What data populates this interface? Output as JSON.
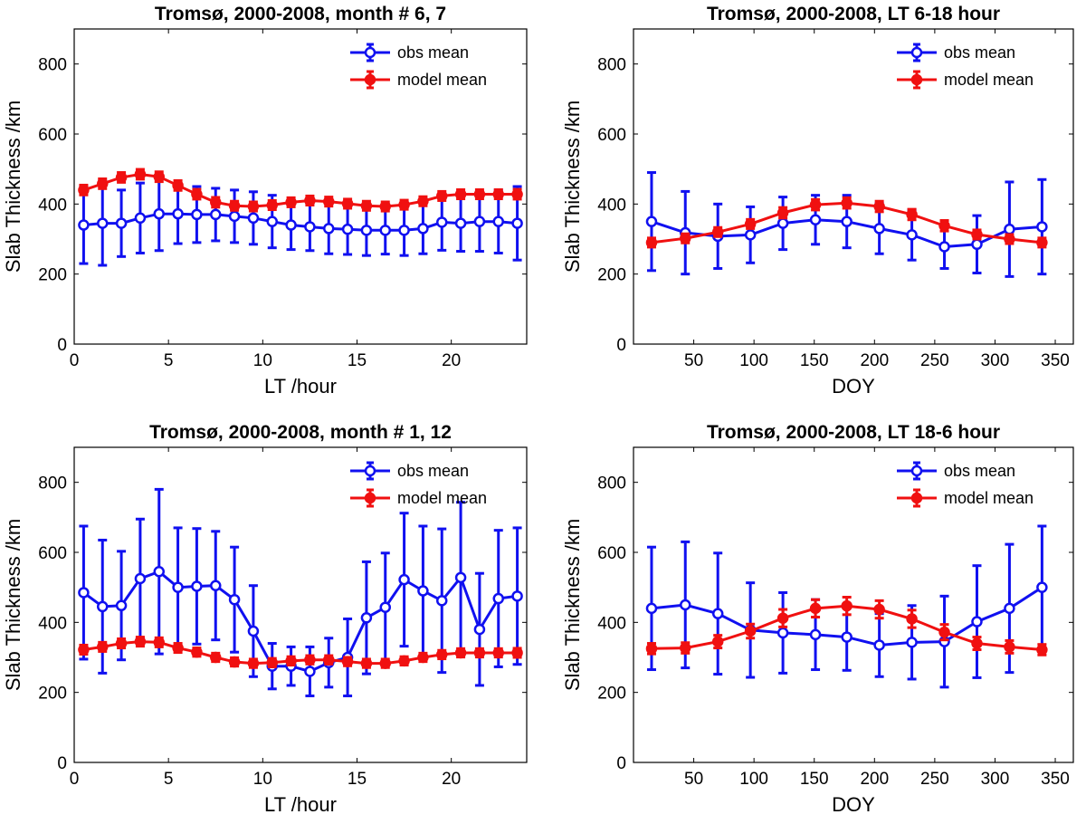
{
  "colors": {
    "obs": "#1010f0",
    "model": "#f01010"
  },
  "chart_data": [
    {
      "type": "line",
      "title": "Tromsø, 2000-2008, month # 6, 7",
      "xlabel": "LT /hour",
      "ylabel": "Slab Thickness /km",
      "xlim": [
        0,
        24
      ],
      "ylim": [
        0,
        900
      ],
      "xticks": [
        0,
        5,
        10,
        15,
        20
      ],
      "yticks": [
        0,
        200,
        400,
        600,
        800
      ],
      "legend": {
        "position": "top-right",
        "entries": [
          "obs mean",
          "model mean"
        ]
      },
      "x": [
        0.5,
        1.5,
        2.5,
        3.5,
        4.5,
        5.5,
        6.5,
        7.5,
        8.5,
        9.5,
        10.5,
        11.5,
        12.5,
        13.5,
        14.5,
        15.5,
        16.5,
        17.5,
        18.5,
        19.5,
        20.5,
        21.5,
        22.5,
        23.5
      ],
      "series": [
        {
          "name": "obs mean",
          "values": [
            340,
            345,
            345,
            360,
            372,
            372,
            370,
            370,
            365,
            360,
            350,
            340,
            335,
            330,
            328,
            325,
            325,
            325,
            330,
            348,
            345,
            350,
            350,
            345
          ],
          "errors": [
            110,
            120,
            95,
            100,
            105,
            85,
            80,
            75,
            75,
            75,
            75,
            70,
            68,
            72,
            72,
            72,
            68,
            72,
            72,
            80,
            80,
            85,
            90,
            105
          ]
        },
        {
          "name": "model mean",
          "values": [
            440,
            458,
            476,
            485,
            478,
            453,
            428,
            405,
            395,
            393,
            397,
            405,
            410,
            407,
            401,
            395,
            393,
            398,
            408,
            423,
            428,
            428,
            428,
            428
          ],
          "errors": [
            14,
            14,
            14,
            14,
            14,
            14,
            14,
            14,
            13,
            13,
            13,
            13,
            13,
            13,
            13,
            13,
            13,
            13,
            13,
            13,
            13,
            13,
            13,
            14
          ]
        }
      ]
    },
    {
      "type": "line",
      "title": "Tromsø, 2000-2008, LT 6-18 hour",
      "xlabel": "DOY",
      "ylabel": "Slab Thickness /km",
      "xlim": [
        0,
        365
      ],
      "ylim": [
        0,
        900
      ],
      "xticks": [
        50,
        100,
        150,
        200,
        250,
        300,
        350
      ],
      "yticks": [
        0,
        200,
        400,
        600,
        800
      ],
      "legend": {
        "position": "top-right",
        "entries": [
          "obs mean",
          "model mean"
        ]
      },
      "x": [
        15,
        43,
        70,
        97,
        124,
        151,
        177,
        204,
        231,
        258,
        285,
        312,
        339
      ],
      "series": [
        {
          "name": "obs mean",
          "values": [
            350,
            318,
            308,
            312,
            345,
            355,
            350,
            330,
            312,
            278,
            285,
            328,
            335
          ],
          "errors": [
            140,
            118,
            92,
            80,
            75,
            70,
            75,
            72,
            72,
            62,
            82,
            135,
            135
          ]
        },
        {
          "name": "model mean",
          "values": [
            290,
            302,
            320,
            343,
            375,
            398,
            403,
            393,
            370,
            338,
            313,
            300,
            290
          ],
          "errors": [
            13,
            13,
            13,
            13,
            15,
            15,
            15,
            15,
            15,
            15,
            13,
            13,
            13
          ]
        }
      ]
    },
    {
      "type": "line",
      "title": "Tromsø, 2000-2008, month # 1, 12",
      "xlabel": "LT /hour",
      "ylabel": "Slab Thickness /km",
      "xlim": [
        0,
        24
      ],
      "ylim": [
        0,
        900
      ],
      "xticks": [
        0,
        5,
        10,
        15,
        20
      ],
      "yticks": [
        0,
        200,
        400,
        600,
        800
      ],
      "legend": {
        "position": "top-right",
        "entries": [
          "obs mean",
          "model mean"
        ]
      },
      "x": [
        0.5,
        1.5,
        2.5,
        3.5,
        4.5,
        5.5,
        6.5,
        7.5,
        8.5,
        9.5,
        10.5,
        11.5,
        12.5,
        13.5,
        14.5,
        15.5,
        16.5,
        17.5,
        18.5,
        19.5,
        20.5,
        21.5,
        22.5,
        23.5
      ],
      "series": [
        {
          "name": "obs mean",
          "values": [
            485,
            445,
            448,
            525,
            545,
            500,
            503,
            505,
            465,
            375,
            275,
            275,
            260,
            285,
            300,
            413,
            443,
            522,
            490,
            462,
            528,
            380,
            468,
            475
          ],
          "errors": [
            190,
            190,
            155,
            170,
            235,
            170,
            165,
            155,
            150,
            130,
            65,
            55,
            70,
            70,
            110,
            160,
            155,
            190,
            185,
            205,
            215,
            160,
            195,
            195
          ]
        },
        {
          "name": "model mean",
          "values": [
            322,
            330,
            340,
            345,
            343,
            327,
            315,
            300,
            287,
            283,
            285,
            290,
            293,
            293,
            288,
            283,
            283,
            290,
            300,
            308,
            313,
            313,
            313,
            313
          ],
          "errors": [
            13,
            13,
            13,
            13,
            13,
            13,
            12,
            12,
            12,
            12,
            12,
            12,
            12,
            12,
            12,
            12,
            12,
            12,
            12,
            12,
            12,
            12,
            12,
            13
          ]
        }
      ]
    },
    {
      "type": "line",
      "title": "Tromsø, 2000-2008, LT 18-6 hour",
      "xlabel": "DOY",
      "ylabel": "Slab Thickness /km",
      "xlim": [
        0,
        365
      ],
      "ylim": [
        0,
        900
      ],
      "xticks": [
        50,
        100,
        150,
        200,
        250,
        300,
        350
      ],
      "yticks": [
        0,
        200,
        400,
        600,
        800
      ],
      "legend": {
        "position": "top-right",
        "entries": [
          "obs mean",
          "model mean"
        ]
      },
      "x": [
        15,
        43,
        70,
        97,
        124,
        151,
        177,
        204,
        231,
        258,
        285,
        312,
        339
      ],
      "series": [
        {
          "name": "obs mean",
          "values": [
            440,
            450,
            425,
            378,
            370,
            365,
            358,
            335,
            343,
            345,
            402,
            440,
            500
          ],
          "errors": [
            175,
            180,
            173,
            135,
            115,
            100,
            95,
            90,
            105,
            130,
            160,
            183,
            175
          ]
        },
        {
          "name": "model mean",
          "values": [
            325,
            327,
            345,
            375,
            412,
            440,
            447,
            437,
            410,
            372,
            340,
            330,
            322
          ],
          "errors": [
            15,
            15,
            18,
            20,
            25,
            25,
            25,
            25,
            25,
            22,
            18,
            18,
            15
          ]
        }
      ]
    }
  ]
}
